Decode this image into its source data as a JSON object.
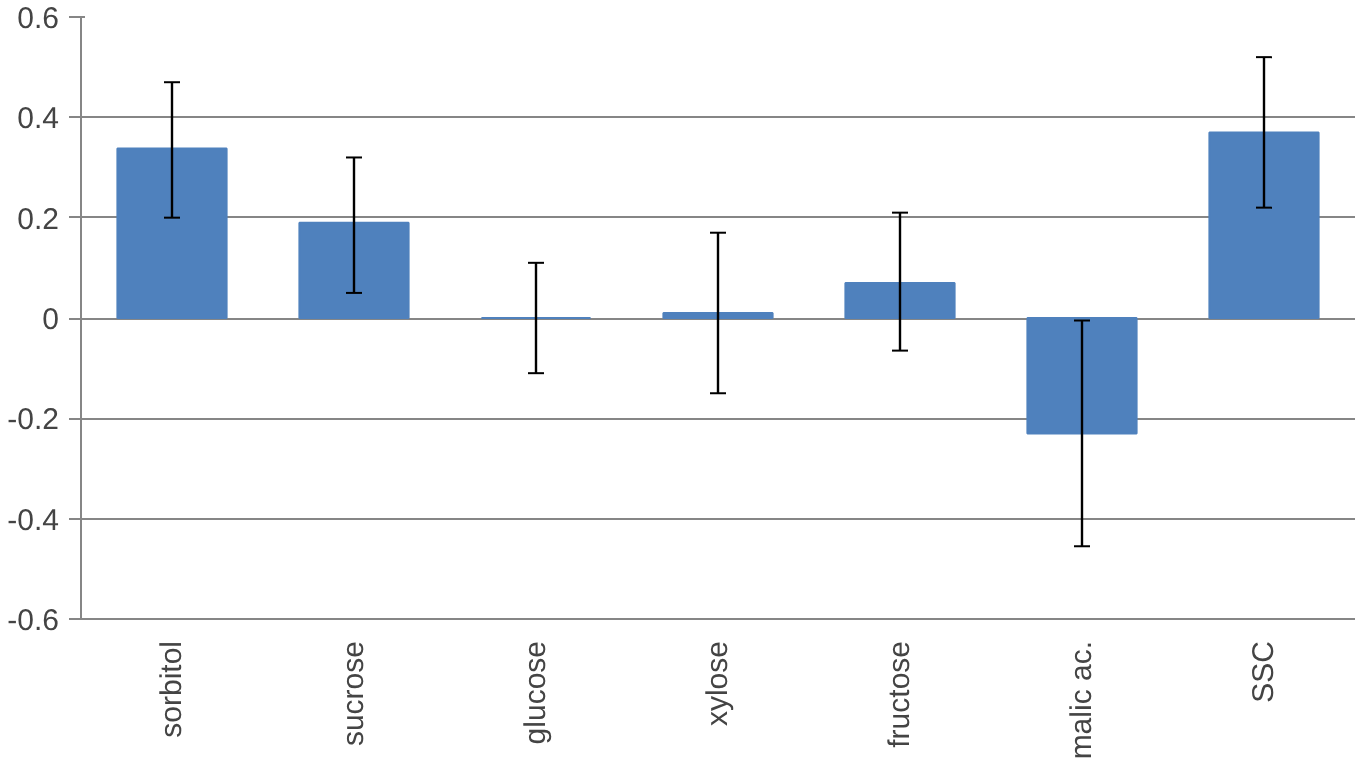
{
  "chart_data": {
    "type": "bar",
    "categories": [
      "sorbitol",
      "sucrose",
      "glucose",
      "xylose",
      "fructose",
      "malic ac.",
      "SSC"
    ],
    "values": [
      0.338,
      0.19,
      0.0,
      0.01,
      0.07,
      -0.23,
      0.37
    ],
    "errors": [
      [
        0.2,
        0.47
      ],
      [
        0.05,
        0.32
      ],
      [
        -0.11,
        0.11
      ],
      [
        -0.15,
        0.17
      ],
      [
        -0.065,
        0.21
      ],
      [
        -0.455,
        -0.005
      ],
      [
        0.22,
        0.52
      ]
    ],
    "color": "#4f81bd",
    "ylim": [
      -0.6,
      0.6
    ],
    "yticks": [
      {
        "value": -0.6,
        "label": "-0.6"
      },
      {
        "value": -0.4,
        "label": "-0.4"
      },
      {
        "value": -0.2,
        "label": "-0.2"
      },
      0,
      {
        "value": 0.2,
        "label": "0.2"
      },
      {
        "value": 0.4,
        "label": "0.4"
      },
      {
        "value": 0.6,
        "label": "0.6"
      }
    ],
    "grid": "y"
  }
}
